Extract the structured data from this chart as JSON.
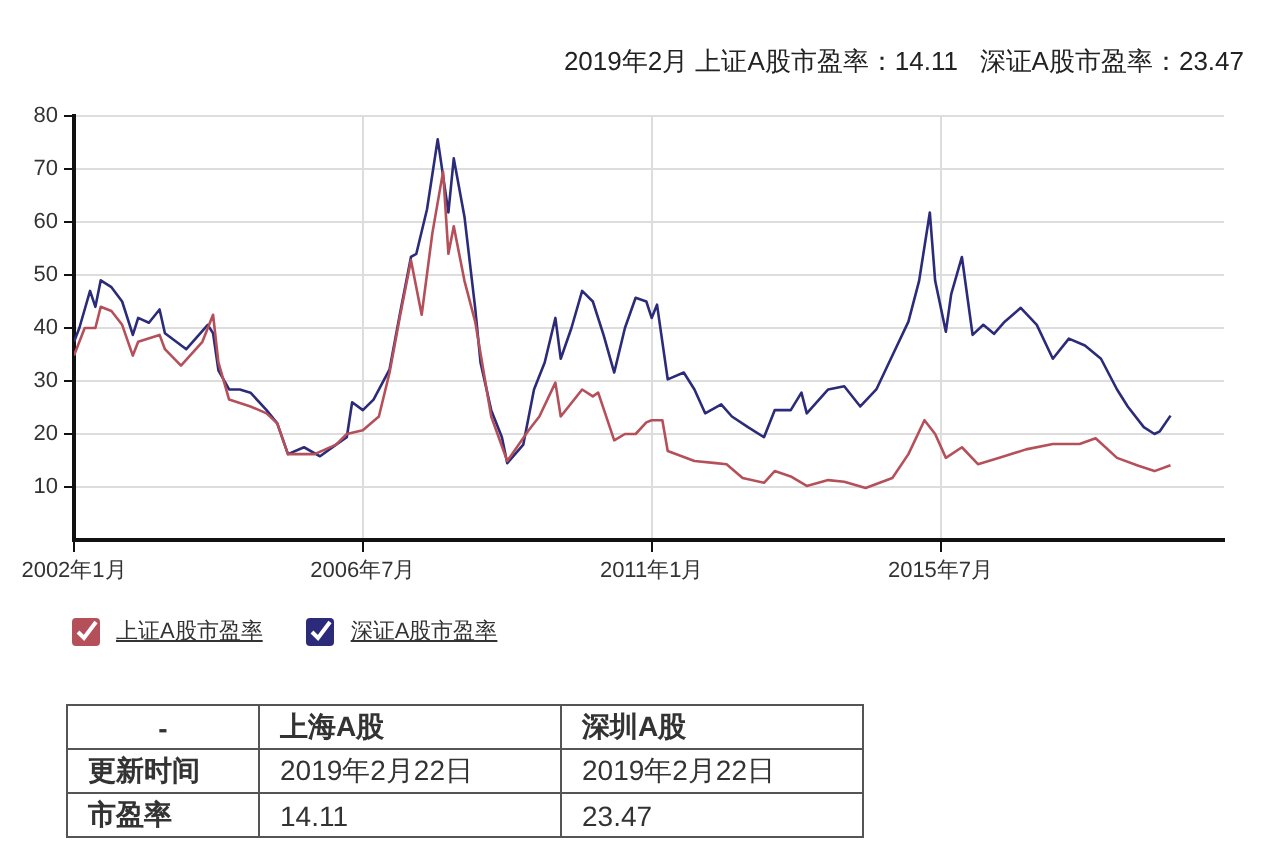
{
  "chart_data": {
    "type": "line",
    "title": "2019年2月 上证A股市盈率：14.11   深证A股市盈率：23.47",
    "xlim": [
      "2002-01",
      "2019-12"
    ],
    "xticks": [
      {
        "value": "2002-01",
        "label": "2002年1月"
      },
      {
        "value": "2006-07",
        "label": "2006年7月"
      },
      {
        "value": "2011-01",
        "label": "2011年1月"
      },
      {
        "value": "2015-07",
        "label": "2015年7月"
      }
    ],
    "ylim": [
      0,
      80
    ],
    "yticks": [
      10,
      20,
      30,
      40,
      50,
      60,
      70,
      80
    ],
    "grid": true,
    "legend": "bottom left",
    "series": [
      {
        "name": "上证A股市盈率",
        "color": "#b5505a",
        "x": [
          "2002-01",
          "2002-03",
          "2002-05",
          "2002-06",
          "2002-08",
          "2002-10",
          "2002-12",
          "2003-01",
          "2003-05",
          "2003-06",
          "2003-09",
          "2004-01",
          "2004-03",
          "2004-04",
          "2004-06",
          "2004-10",
          "2005-01",
          "2005-03",
          "2005-05",
          "2005-10",
          "2006-02",
          "2006-04",
          "2006-07",
          "2006-10",
          "2006-12",
          "2007-02",
          "2007-04",
          "2007-06",
          "2007-08",
          "2007-10",
          "2007-11",
          "2007-12",
          "2008-02",
          "2008-04",
          "2008-07",
          "2008-10",
          "2009-02",
          "2009-04",
          "2009-07",
          "2009-08",
          "2009-12",
          "2010-02",
          "2010-03",
          "2010-06",
          "2010-08",
          "2010-10",
          "2010-12",
          "2011-01",
          "2011-03",
          "2011-04",
          "2011-09",
          "2012-01",
          "2012-03",
          "2012-06",
          "2012-10",
          "2012-12",
          "2013-03",
          "2013-06",
          "2013-10",
          "2014-01",
          "2014-05",
          "2014-10",
          "2015-01",
          "2015-04",
          "2015-06",
          "2015-08",
          "2015-11",
          "2016-02",
          "2016-06",
          "2016-11",
          "2017-04",
          "2017-09",
          "2017-12",
          "2018-04",
          "2018-08",
          "2018-11",
          "2019-02"
        ],
        "values": [
          34.8,
          40,
          40,
          44,
          43.2,
          40.6,
          34.8,
          37.4,
          38.7,
          36,
          32.9,
          37.4,
          42.5,
          33.5,
          26.5,
          25.2,
          23.9,
          22,
          16.2,
          16.2,
          18,
          20,
          20.7,
          23.3,
          31.6,
          42.5,
          52.8,
          42.5,
          57.9,
          69.5,
          54,
          59.2,
          48.9,
          41.2,
          23.3,
          14.9,
          20.7,
          23.3,
          29.7,
          23.3,
          28.4,
          27.1,
          27.8,
          18.8,
          20,
          20,
          22.2,
          22.6,
          22.6,
          16.8,
          14.9,
          14.5,
          14.3,
          11.7,
          10.8,
          13,
          12,
          10.2,
          11.3,
          11,
          9.8,
          11.7,
          16.2,
          22.6,
          20,
          15.5,
          17.5,
          14.3,
          15.5,
          17.1,
          18.1,
          18.1,
          19.2,
          15.5,
          14,
          13,
          14.11
        ]
      },
      {
        "name": "深证A股市盈率",
        "color": "#2b2b7a",
        "x": [
          "2002-01",
          "2002-02",
          "2002-04",
          "2002-05",
          "2002-06",
          "2002-08",
          "2002-10",
          "2002-12",
          "2003-01",
          "2003-03",
          "2003-05",
          "2003-06",
          "2003-10",
          "2004-02",
          "2004-03",
          "2004-04",
          "2004-06",
          "2004-08",
          "2004-10",
          "2005-01",
          "2005-03",
          "2005-05",
          "2005-08",
          "2005-11",
          "2006-02",
          "2006-04",
          "2006-05",
          "2006-07",
          "2006-09",
          "2006-12",
          "2007-02",
          "2007-04",
          "2007-05",
          "2007-07",
          "2007-09",
          "2007-11",
          "2007-12",
          "2008-02",
          "2008-04",
          "2008-05",
          "2008-07",
          "2008-09",
          "2008-10",
          "2009-01",
          "2009-03",
          "2009-05",
          "2009-07",
          "2009-08",
          "2009-10",
          "2009-12",
          "2010-02",
          "2010-04",
          "2010-06",
          "2010-08",
          "2010-10",
          "2010-12",
          "2011-01",
          "2011-02",
          "2011-04",
          "2011-07",
          "2011-09",
          "2011-11",
          "2012-02",
          "2012-04",
          "2012-07",
          "2012-10",
          "2012-12",
          "2013-03",
          "2013-05",
          "2013-06",
          "2013-10",
          "2014-01",
          "2014-04",
          "2014-07",
          "2014-10",
          "2015-01",
          "2015-03",
          "2015-05",
          "2015-06",
          "2015-08",
          "2015-09",
          "2015-11",
          "2016-01",
          "2016-03",
          "2016-05",
          "2016-07",
          "2016-10",
          "2017-01",
          "2017-04",
          "2017-07",
          "2017-10",
          "2018-01",
          "2018-04",
          "2018-06",
          "2018-09",
          "2018-11",
          "2018-12",
          "2019-02"
        ],
        "values": [
          37.4,
          40,
          47,
          44,
          49,
          47.7,
          45,
          38.7,
          41.9,
          41,
          43.5,
          39,
          36,
          40.6,
          39,
          32,
          28.4,
          28.4,
          27.8,
          24.5,
          22,
          16.2,
          17.5,
          15.8,
          18,
          19.4,
          26,
          24.5,
          26.5,
          32.2,
          43,
          53.4,
          54,
          62.4,
          75.6,
          61.8,
          72,
          61,
          43.8,
          33.5,
          24.5,
          19.4,
          14.5,
          18,
          28.4,
          33.5,
          41.9,
          34.2,
          40,
          47,
          45,
          38.7,
          31.6,
          40,
          45.7,
          45,
          41.9,
          44.4,
          30.3,
          31.6,
          28.4,
          23.9,
          25.6,
          23.3,
          21.3,
          19.4,
          24.5,
          24.5,
          27.8,
          23.9,
          28.4,
          29,
          25.2,
          28.4,
          34.8,
          41.2,
          48.9,
          61.8,
          48.9,
          39.3,
          46.4,
          53.4,
          38.7,
          40.6,
          38.9,
          41.2,
          43.8,
          40.6,
          34.2,
          38,
          36.7,
          34.2,
          28.4,
          25.2,
          21.3,
          20,
          20.5,
          23.47
        ]
      }
    ],
    "annotations": [
      "-",
      "上海A股",
      "深圳A股",
      "更新时间",
      "2019年2月22日",
      "2019年2月22日",
      "市盈率",
      "14.11",
      "23.47"
    ]
  }
}
